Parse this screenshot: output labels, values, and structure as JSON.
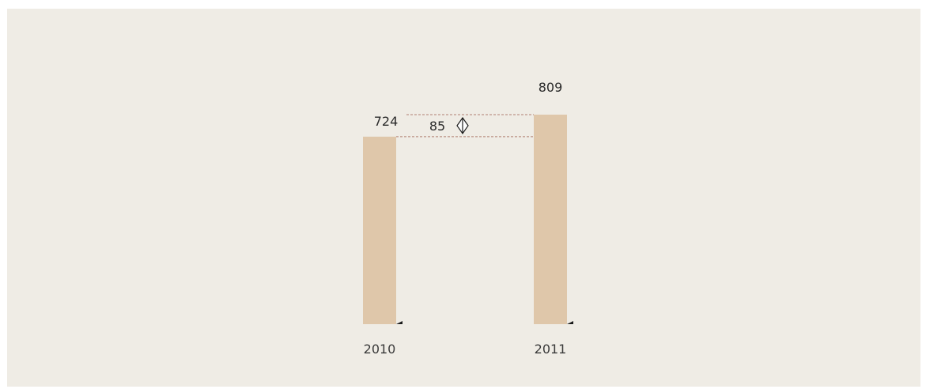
{
  "chart_data": {
    "type": "bar",
    "categories": [
      "2010",
      "2011"
    ],
    "values": [
      724,
      809
    ],
    "data_labels": [
      "724",
      "809"
    ],
    "difference": {
      "value": 85,
      "label": "85"
    },
    "title": "",
    "xlabel": "",
    "ylabel": "",
    "ylim": [
      0,
      809
    ],
    "grid": false,
    "legend": "none",
    "colors": {
      "bar": "#dfc7aa",
      "background": "#efece5",
      "guide_line": "#b07f72",
      "text": "#2a2a2a"
    }
  }
}
